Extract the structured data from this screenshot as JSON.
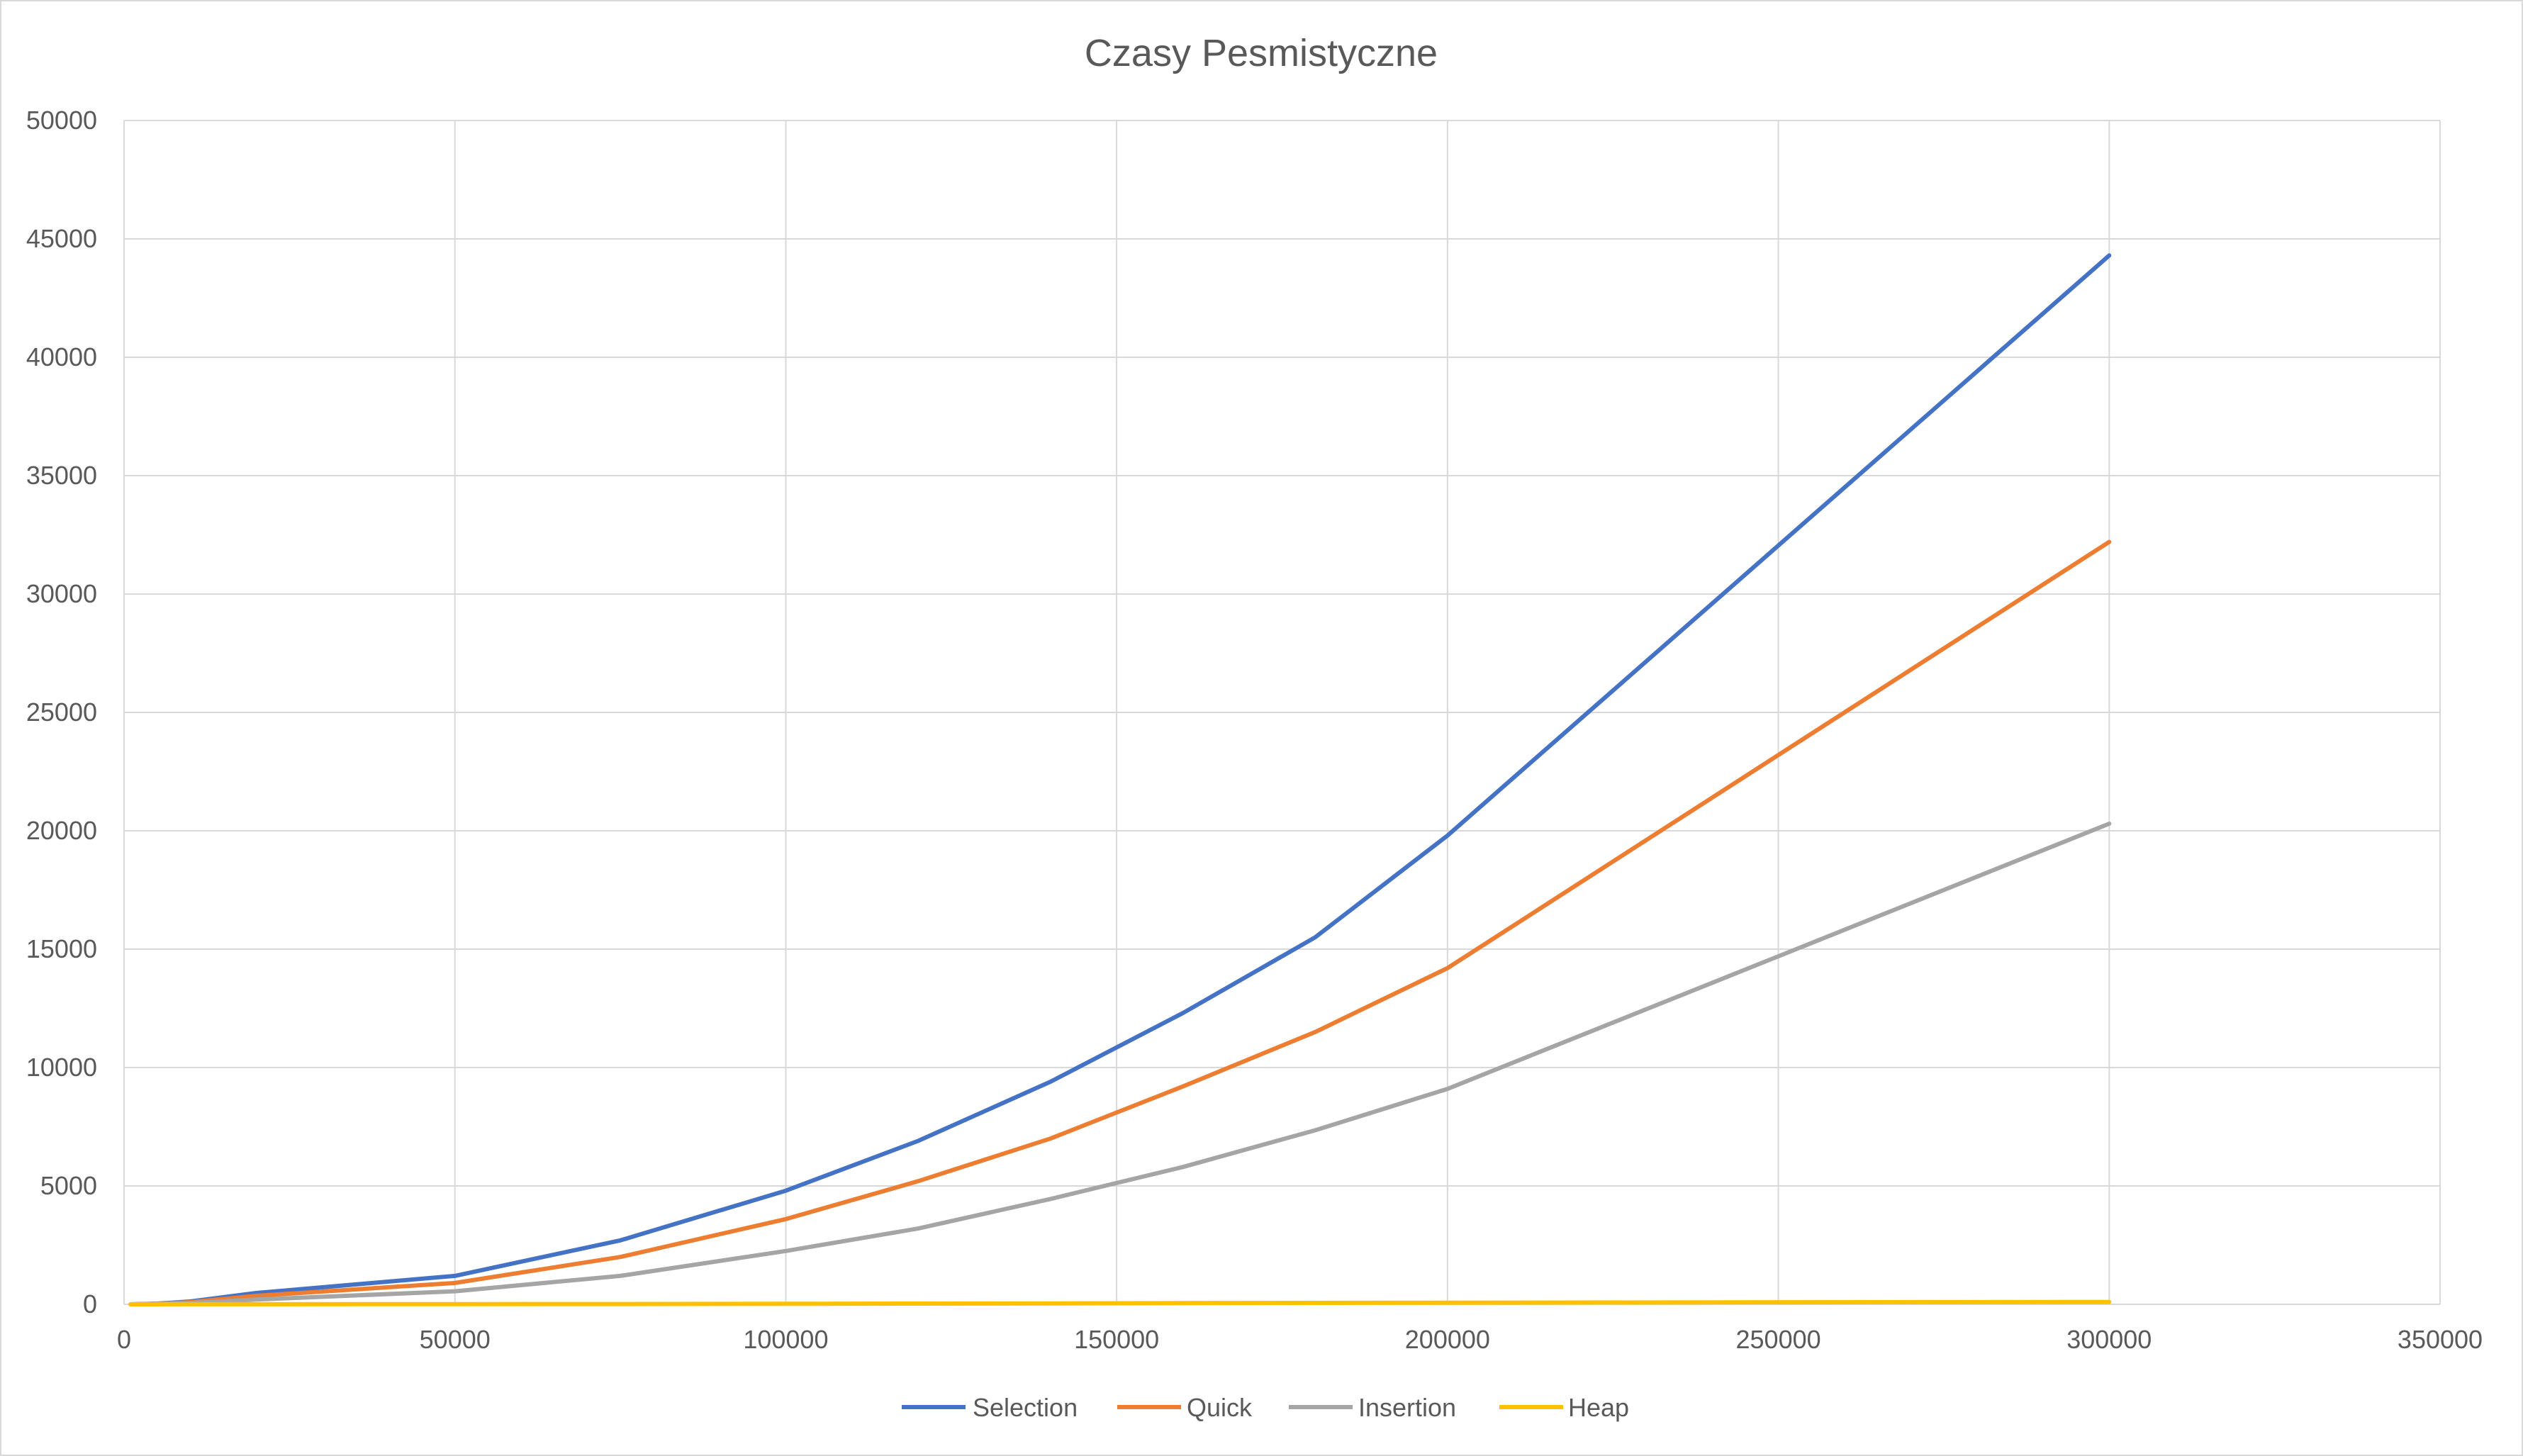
{
  "chart_data": {
    "type": "line",
    "title": "Czasy Pesmistyczne",
    "xlabel": "",
    "ylabel": "",
    "xlim": [
      0,
      350000
    ],
    "ylim": [
      0,
      50000
    ],
    "x_ticks": [
      0,
      50000,
      100000,
      150000,
      200000,
      250000,
      300000,
      350000
    ],
    "y_ticks": [
      0,
      5000,
      10000,
      15000,
      20000,
      25000,
      30000,
      35000,
      40000,
      45000,
      50000
    ],
    "grid": true,
    "legend_position": "bottom",
    "x": [
      1000,
      5000,
      10000,
      20000,
      50000,
      75000,
      100000,
      120000,
      140000,
      160000,
      180000,
      200000,
      300000
    ],
    "series": [
      {
        "name": "Selection",
        "color": "#4472C4",
        "values": [
          1,
          30,
          120,
          480,
          1200,
          2700,
          4800,
          6900,
          9400,
          12300,
          15500,
          19800,
          44300
        ]
      },
      {
        "name": "Quick",
        "color": "#ED7D31",
        "values": [
          1,
          22,
          90,
          360,
          900,
          2000,
          3600,
          5200,
          7000,
          9200,
          11500,
          14200,
          32200
        ]
      },
      {
        "name": "Insertion",
        "color": "#A5A5A5",
        "values": [
          0,
          12,
          50,
          200,
          550,
          1200,
          2250,
          3200,
          4450,
          5800,
          7350,
          9100,
          20300
        ]
      },
      {
        "name": "Heap",
        "color": "#FFC000",
        "values": [
          0,
          1,
          2,
          4,
          8,
          12,
          20,
          30,
          40,
          50,
          60,
          70,
          100
        ]
      }
    ]
  }
}
